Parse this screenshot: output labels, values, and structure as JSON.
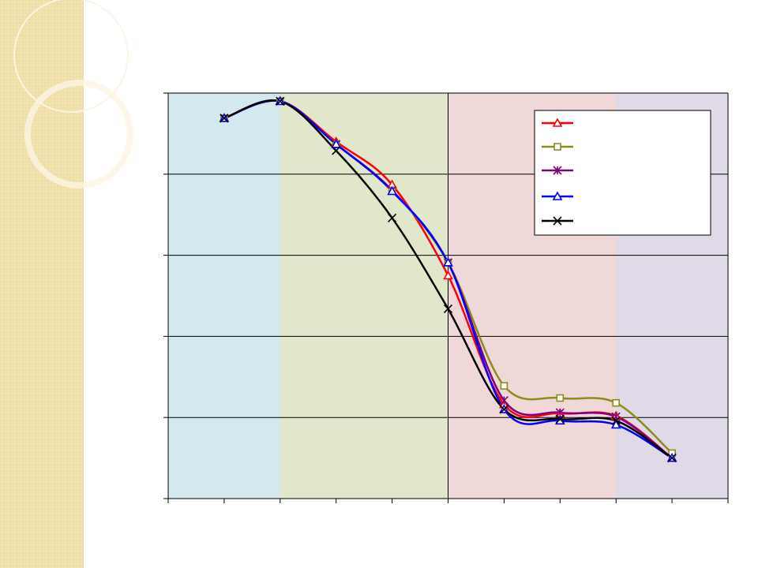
{
  "chart_data": {
    "type": "line",
    "x": [
      1,
      2,
      3,
      4,
      5,
      6,
      7,
      8,
      9
    ],
    "xlim": [
      0,
      10
    ],
    "xticks": [
      0,
      1,
      2,
      3,
      4,
      5,
      6,
      7,
      8,
      9,
      10
    ],
    "ylim": [
      0,
      5
    ],
    "yticks": [
      0,
      1,
      2,
      3,
      4,
      5
    ],
    "grid": true,
    "vgrid": [
      5
    ],
    "smooth": true,
    "bands": [
      {
        "from": 0,
        "to": 2,
        "color": "#d4e9ef"
      },
      {
        "from": 2,
        "to": 5,
        "color": "#e0e7cb"
      },
      {
        "from": 5,
        "to": 8,
        "color": "#f0d8d8"
      },
      {
        "from": 8,
        "to": 10,
        "color": "#e0d9e7"
      }
    ],
    "legend": "top-right",
    "series": [
      {
        "color": "#ff0000",
        "marker": "triangle",
        "values": [
          4.69,
          4.9,
          4.4,
          3.87,
          2.75,
          1.16,
          1.05,
          1.02,
          0.5
        ]
      },
      {
        "color": "#8c8c1a",
        "marker": "square",
        "values": [
          4.69,
          4.9,
          4.37,
          3.8,
          2.91,
          1.39,
          1.24,
          1.18,
          0.56
        ]
      },
      {
        "color": "#800080",
        "marker": "asterisk",
        "values": [
          4.69,
          4.9,
          4.37,
          3.8,
          2.91,
          1.21,
          1.06,
          1.01,
          0.5
        ]
      },
      {
        "color": "#0000ff",
        "marker": "triangle",
        "values": [
          4.69,
          4.9,
          4.37,
          3.79,
          2.91,
          1.1,
          0.96,
          0.91,
          0.5
        ]
      },
      {
        "color": "#000000",
        "marker": "x",
        "values": [
          4.69,
          4.9,
          4.29,
          3.46,
          2.34,
          1.1,
          0.98,
          0.96,
          0.5
        ]
      }
    ]
  }
}
